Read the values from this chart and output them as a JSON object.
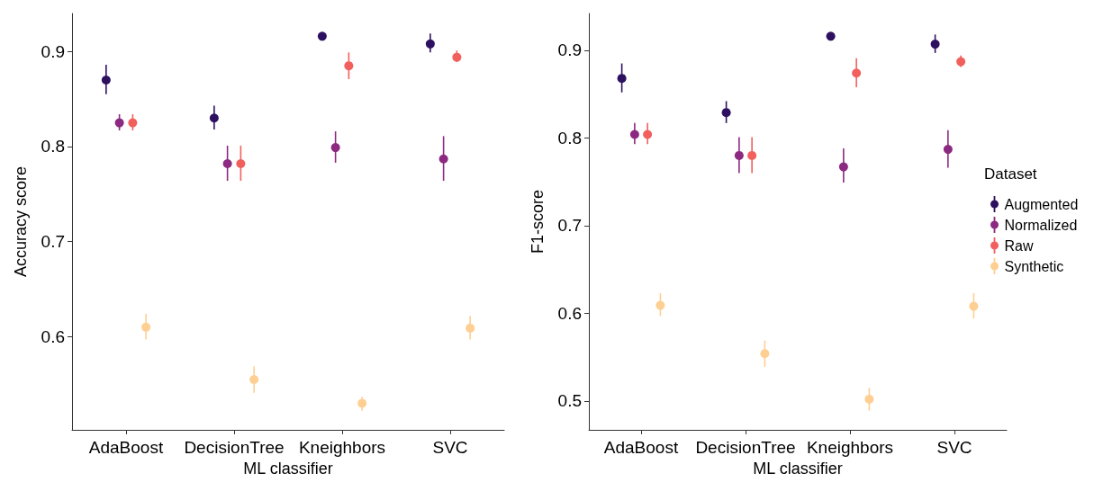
{
  "chart_data": [
    {
      "type": "scatter",
      "xlabel": "ML classifier",
      "ylabel": "Accuracy score",
      "categories": [
        "AdaBoost",
        "DecisionTree",
        "Kneighbors",
        "SVC"
      ],
      "ylim": [
        0.502,
        0.94
      ],
      "yticks": [
        0.6,
        0.7,
        0.8,
        0.9
      ],
      "grid": false,
      "legend": false,
      "marker": "circle",
      "series": [
        {
          "color": "#2d1160",
          "values": [
            0.87,
            0.83,
            0.916,
            0.908
          ],
          "errors": [
            [
              0.855,
              0.886
            ],
            [
              0.818,
              0.843
            ],
            [
              0.913,
              0.919
            ],
            [
              0.899,
              0.919
            ]
          ]
        },
        {
          "color": "#8c2981",
          "values": [
            0.825,
            0.782,
            0.799,
            0.787
          ],
          "errors": [
            [
              0.817,
              0.834
            ],
            [
              0.764,
              0.801
            ],
            [
              0.783,
              0.816
            ],
            [
              0.764,
              0.811
            ]
          ]
        },
        {
          "color": "#f1605d",
          "values": [
            0.825,
            0.782,
            0.885,
            0.894
          ],
          "errors": [
            [
              0.817,
              0.834
            ],
            [
              0.764,
              0.801
            ],
            [
              0.871,
              0.899
            ],
            [
              0.889,
              0.901
            ]
          ]
        },
        {
          "color": "#fecf92",
          "values": [
            0.61,
            0.555,
            0.53,
            0.609
          ],
          "errors": [
            [
              0.597,
              0.624
            ],
            [
              0.541,
              0.569
            ],
            [
              0.522,
              0.537
            ],
            [
              0.597,
              0.622
            ]
          ]
        }
      ]
    },
    {
      "type": "scatter",
      "xlabel": "ML classifier",
      "ylabel": "F1-score",
      "categories": [
        "AdaBoost",
        "DecisionTree",
        "Kneighbors",
        "SVC"
      ],
      "ylim": [
        0.467,
        0.942
      ],
      "yticks": [
        0.5,
        0.6,
        0.7,
        0.8,
        0.9
      ],
      "grid": false,
      "legend": "right",
      "legend_title": "Dataset",
      "marker": "circle",
      "series": [
        {
          "name": "Augmented",
          "color": "#2d1160",
          "values": [
            0.868,
            0.829,
            0.916,
            0.907
          ],
          "errors": [
            [
              0.852,
              0.885
            ],
            [
              0.817,
              0.842
            ],
            [
              0.913,
              0.919
            ],
            [
              0.897,
              0.918
            ]
          ]
        },
        {
          "name": "Normalized",
          "color": "#8c2981",
          "values": [
            0.804,
            0.78,
            0.767,
            0.787
          ],
          "errors": [
            [
              0.793,
              0.817
            ],
            [
              0.76,
              0.801
            ],
            [
              0.749,
              0.788
            ],
            [
              0.766,
              0.809
            ]
          ]
        },
        {
          "name": "Raw",
          "color": "#f1605d",
          "values": [
            0.804,
            0.78,
            0.874,
            0.887
          ],
          "errors": [
            [
              0.793,
              0.817
            ],
            [
              0.76,
              0.801
            ],
            [
              0.858,
              0.891
            ],
            [
              0.881,
              0.894
            ]
          ]
        },
        {
          "name": "Synthetic",
          "color": "#fecf92",
          "values": [
            0.609,
            0.554,
            0.502,
            0.608
          ],
          "errors": [
            [
              0.597,
              0.623
            ],
            [
              0.539,
              0.569
            ],
            [
              0.489,
              0.515
            ],
            [
              0.594,
              0.623
            ]
          ]
        }
      ]
    }
  ]
}
